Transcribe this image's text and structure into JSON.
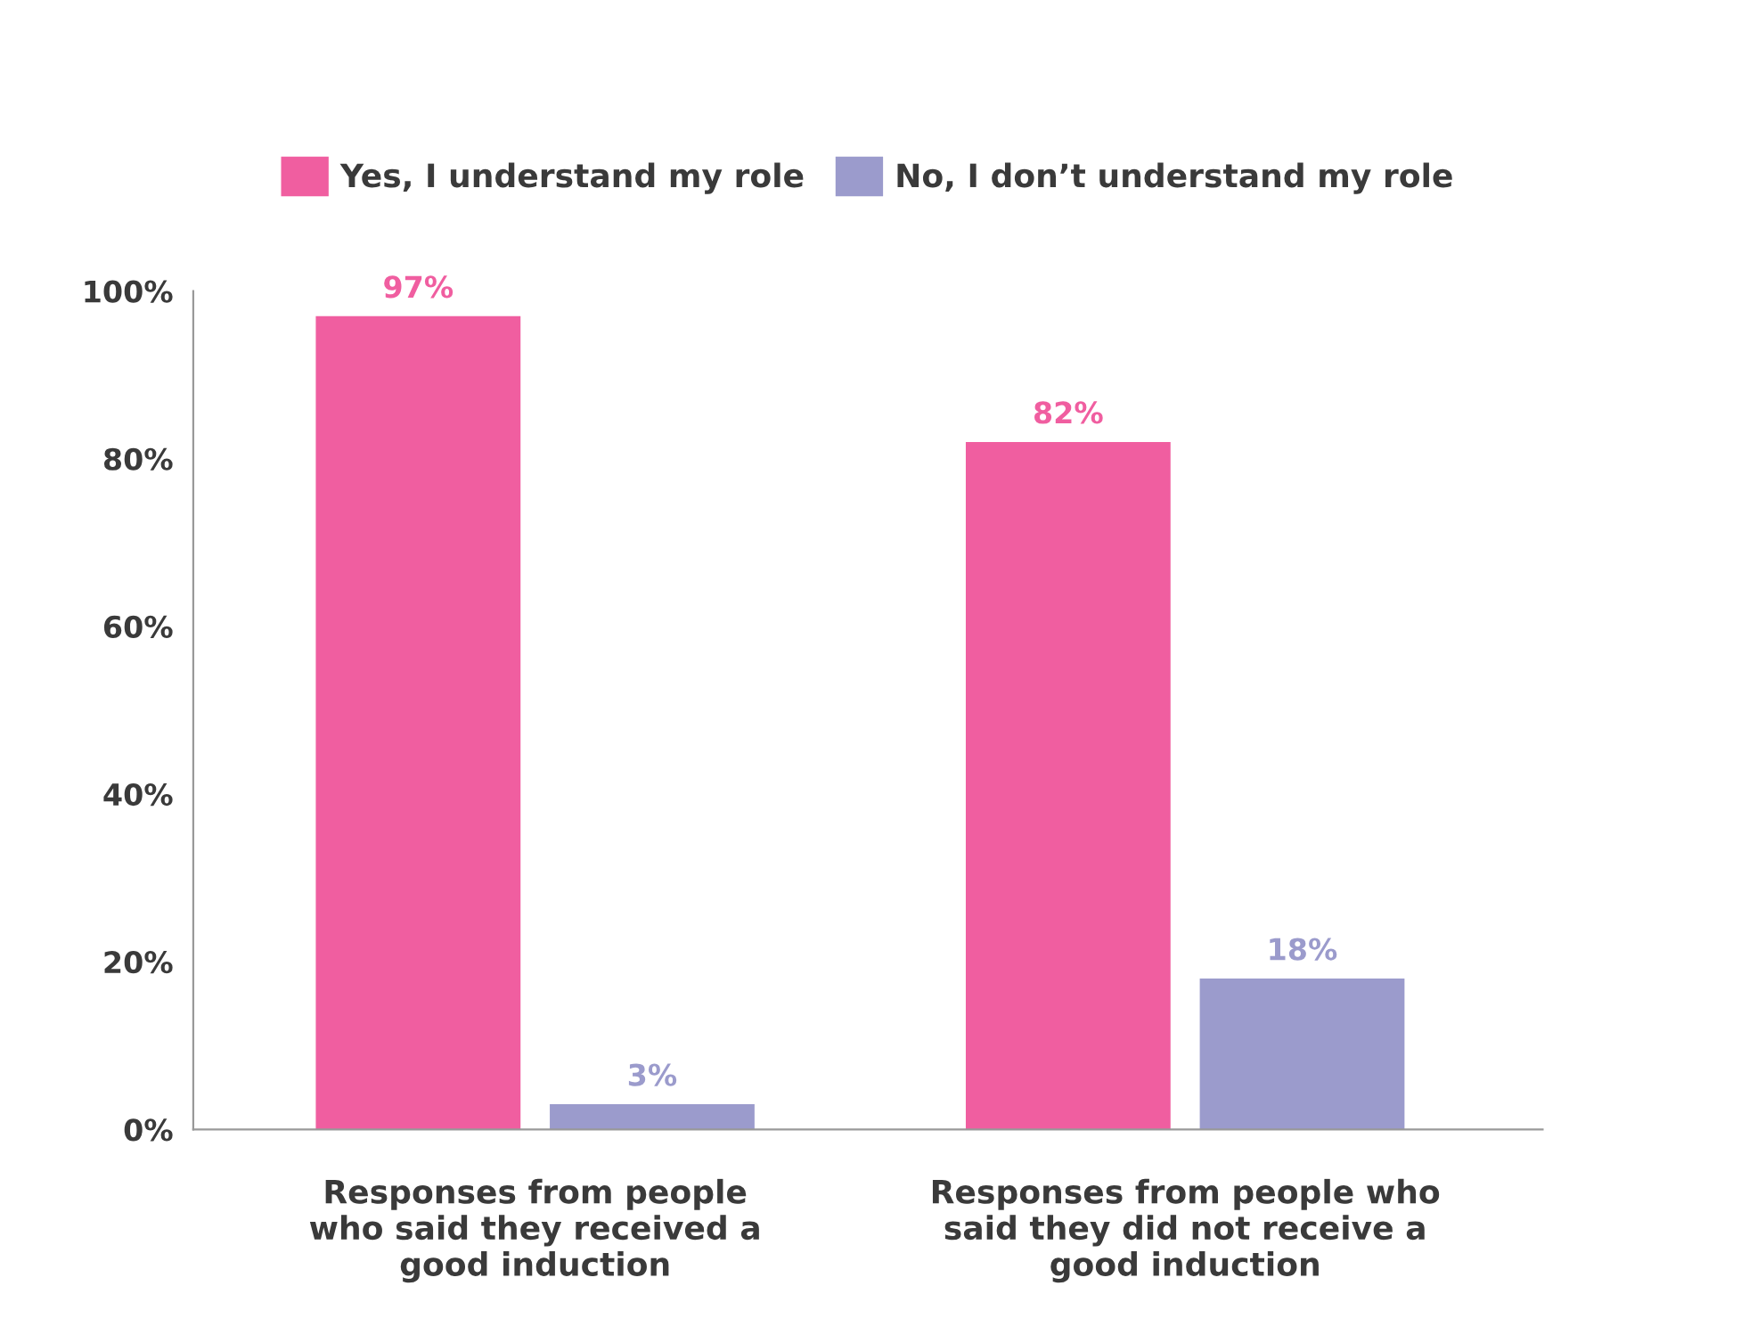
{
  "chart_data": {
    "type": "bar",
    "categories": [
      "Responses from people\nwho said they received a\ngood induction",
      "Responses from people who\nsaid they did not receive a\ngood induction"
    ],
    "series": [
      {
        "name": "Yes, I understand my role",
        "color": "#f05ea0",
        "values": [
          97,
          82
        ],
        "value_labels": [
          "97%",
          "82%"
        ]
      },
      {
        "name": "No, I don’t understand my role",
        "color": "#9b9bcc",
        "values": [
          3,
          18
        ],
        "value_labels": [
          "3%",
          "18%"
        ]
      }
    ],
    "ylim": [
      0,
      100
    ],
    "yticks": [
      {
        "value": 0,
        "label": "0%"
      },
      {
        "value": 20,
        "label": "20%"
      },
      {
        "value": 40,
        "label": "40%"
      },
      {
        "value": 60,
        "label": "60%"
      },
      {
        "value": 80,
        "label": "80%"
      },
      {
        "value": 100,
        "label": "100%"
      }
    ],
    "grid": false,
    "legend": "top"
  }
}
